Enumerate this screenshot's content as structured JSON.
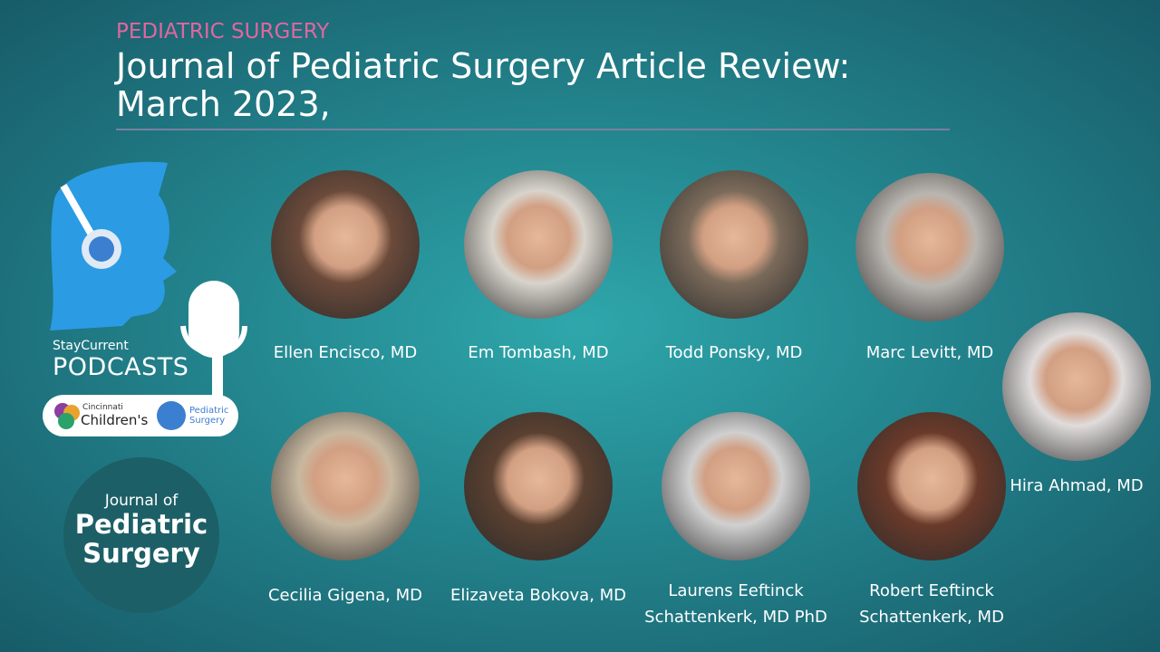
{
  "header": {
    "category": "PEDIATRIC SURGERY",
    "title_lines": [
      "Journal of Pediatric Surgery Article Review:",
      "March 2023,"
    ]
  },
  "podcast_logo": {
    "brand": "StayCurrent",
    "name": "PODCASTS"
  },
  "partner_badge": {
    "org_top": "Cincinnati",
    "org_name": "Children's",
    "dept_lines": [
      "Pediatric",
      "Surgery"
    ]
  },
  "journal_logo": {
    "lines": [
      "Journal of",
      "Pediatric",
      "Surgery"
    ]
  },
  "speakers": [
    {
      "name_lines": [
        "Ellen Encisco, MD"
      ]
    },
    {
      "name_lines": [
        "Em Tombash, MD"
      ]
    },
    {
      "name_lines": [
        "Todd Ponsky, MD"
      ]
    },
    {
      "name_lines": [
        "Marc Levitt, MD"
      ]
    },
    {
      "name_lines": [
        "Cecilia Gigena, MD"
      ]
    },
    {
      "name_lines": [
        "Elizaveta Bokova, MD"
      ]
    },
    {
      "name_lines": [
        "Laurens Eeftinck",
        "Schattenkerk, MD PhD"
      ]
    },
    {
      "name_lines": [
        "Robert Eeftinck",
        "Schattenkerk, MD"
      ]
    },
    {
      "name_lines": [
        "Hira Ahmad, MD"
      ]
    }
  ]
}
